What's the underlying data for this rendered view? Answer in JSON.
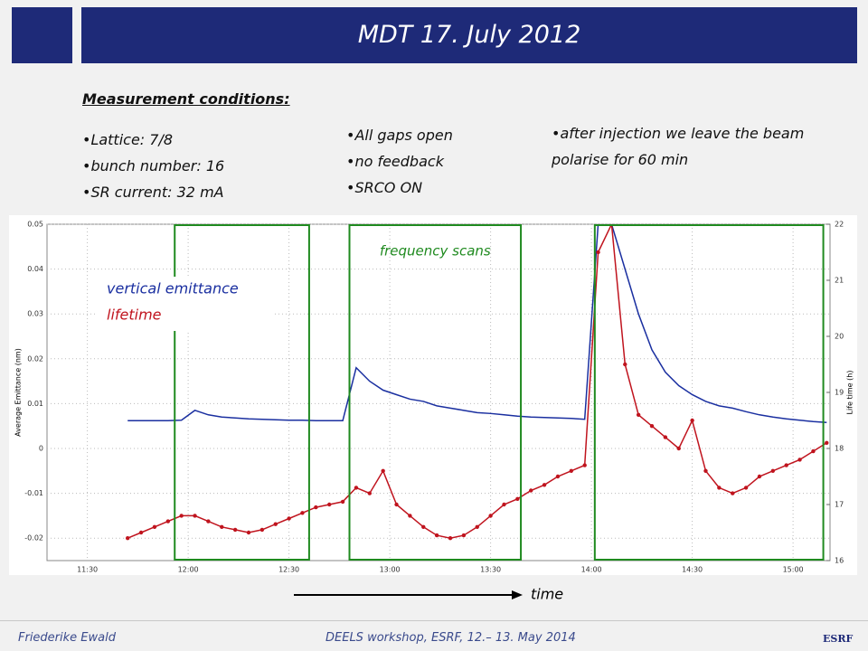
{
  "slide": {
    "title": "MDT  17. July 2012",
    "conditions_heading": "Measurement conditions:",
    "columns": [
      [
        "Lattice:  7/8",
        "bunch number: 16",
        "SR current: 32 mA"
      ],
      [
        "All gaps open",
        "no feedback",
        "SRCO ON"
      ],
      [
        "after injection we leave the beam polarise for 60 min"
      ]
    ],
    "footer": {
      "author": "Friederike Ewald",
      "event": "DEELS workshop, ESRF, 12.– 13. May 2014",
      "logo": "ESRF"
    }
  },
  "chart_data": {
    "type": "line",
    "x": [
      "11:42",
      "11:46",
      "11:50",
      "11:54",
      "11:58",
      "12:02",
      "12:06",
      "12:10",
      "12:14",
      "12:18",
      "12:22",
      "12:26",
      "12:30",
      "12:34",
      "12:38",
      "12:42",
      "12:46",
      "12:50",
      "12:54",
      "12:58",
      "13:02",
      "13:06",
      "13:10",
      "13:14",
      "13:18",
      "13:22",
      "13:26",
      "13:30",
      "13:34",
      "13:38",
      "13:42",
      "13:46",
      "13:50",
      "13:54",
      "13:58",
      "14:02",
      "14:06",
      "14:10",
      "14:14",
      "14:18",
      "14:22",
      "14:26",
      "14:30",
      "14:34",
      "14:38",
      "14:42",
      "14:46",
      "14:50",
      "14:54",
      "14:58",
      "15:02",
      "15:06",
      "15:10"
    ],
    "series": [
      {
        "name": "vertical emittance",
        "color": "#1a2fa0",
        "values": [
          0.0062,
          0.0062,
          0.0062,
          0.0062,
          0.0063,
          0.0085,
          0.0075,
          0.007,
          0.0068,
          0.0066,
          0.0065,
          0.0064,
          0.0063,
          0.0063,
          0.0062,
          0.0062,
          0.0062,
          0.018,
          0.015,
          0.013,
          0.012,
          0.011,
          0.0105,
          0.0095,
          0.009,
          0.0085,
          0.008,
          0.0078,
          0.0075,
          0.0072,
          0.007,
          0.0069,
          0.0068,
          0.0067,
          0.0065,
          0.05,
          0.05,
          0.04,
          0.03,
          0.022,
          0.017,
          0.014,
          0.012,
          0.0105,
          0.0095,
          0.009,
          0.0082,
          0.0075,
          0.007,
          0.0066,
          0.0063,
          0.006,
          0.0058
        ]
      },
      {
        "name": "lifetime",
        "color": "#c0141e",
        "axis": "y2",
        "values": [
          16.4,
          16.5,
          16.6,
          16.7,
          16.8,
          16.8,
          16.7,
          16.6,
          16.55,
          16.5,
          16.55,
          16.65,
          16.75,
          16.85,
          16.95,
          17.0,
          17.05,
          17.3,
          17.2,
          17.6,
          17.0,
          16.8,
          16.6,
          16.45,
          16.4,
          16.45,
          16.6,
          16.8,
          17.0,
          17.1,
          17.25,
          17.35,
          17.5,
          17.6,
          17.7,
          21.5,
          22.0,
          19.5,
          18.6,
          18.4,
          18.2,
          18.0,
          18.5,
          17.6,
          17.3,
          17.2,
          17.3,
          17.5,
          17.6,
          17.7,
          17.8,
          17.95,
          18.1
        ]
      }
    ],
    "xlim": [
      "11:18",
      "15:11"
    ],
    "xticks": [
      "11:30",
      "12:00",
      "12:30",
      "13:00",
      "13:30",
      "14:00",
      "14:30",
      "15:00"
    ],
    "ylim": [
      -0.025,
      0.05
    ],
    "yticks": [
      -0.02,
      -0.01,
      0,
      0.01,
      0.02,
      0.03,
      0.04,
      0.05
    ],
    "y2lim": [
      16,
      22
    ],
    "y2ticks": [
      16,
      17,
      18,
      19,
      20,
      21,
      22
    ],
    "y_label": "Average Emittance (nm)",
    "y2_label": "Life time (h)",
    "x_label": "time",
    "highlight_regions": [
      [
        "11:56",
        "12:36"
      ],
      [
        "12:48",
        "13:39"
      ],
      [
        "14:01",
        "15:09"
      ]
    ],
    "highlight_color": "#1f8a1f",
    "annotation": "frequency scans",
    "grid": true,
    "legend": "upper left"
  }
}
